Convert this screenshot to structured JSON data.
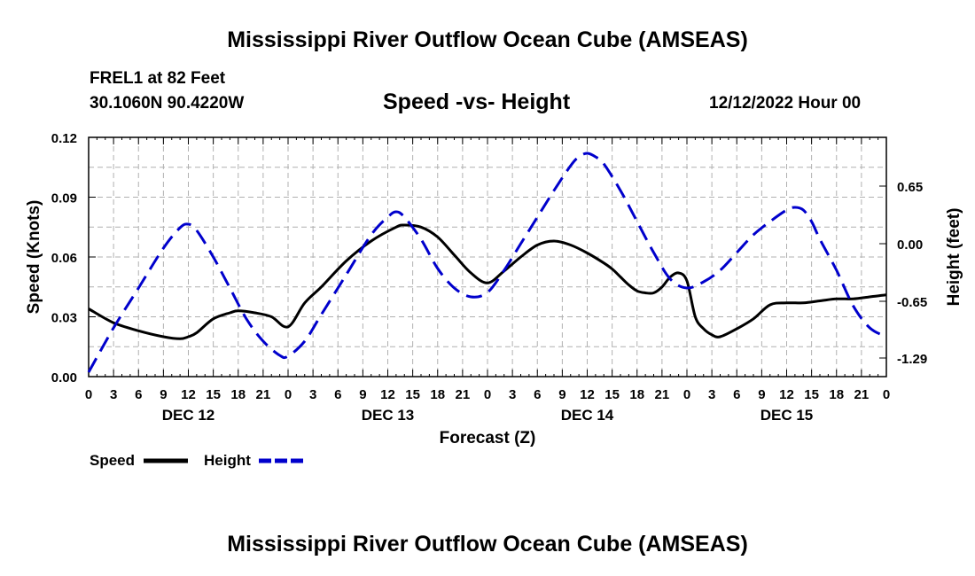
{
  "title": "Mississippi River Outflow Ocean Cube (AMSEAS)",
  "title_repeat": "Mississippi River Outflow Ocean Cube (AMSEAS)",
  "station": {
    "name": "FREL1 at 82 Feet",
    "coords": "30.1060N  90.4220W"
  },
  "plot_title": "Speed -vs- Height",
  "run_date": "12/12/2022 Hour 00",
  "colors": {
    "speed": "#000000",
    "height": "#0000cc",
    "grid": "#b0b0b0"
  },
  "chart_data": {
    "type": "line",
    "xlabel": "Forecast (Z)",
    "ylabel": "Speed (Knots)",
    "y2label": "Height (feet)",
    "x_range_hours": [
      0,
      96
    ],
    "ylim": [
      0,
      0.12
    ],
    "y2lim": [
      -1.5,
      1.2
    ],
    "yticks": [
      "0.00",
      "0.03",
      "0.06",
      "0.09",
      "0.12"
    ],
    "y2ticks": [
      "-1.29",
      "-0.65",
      "0.00",
      "0.65"
    ],
    "y2tick_values": [
      -1.29,
      -0.65,
      0.0,
      0.65
    ],
    "xtick_labels": [
      "0",
      "3",
      "6",
      "9",
      "12",
      "15",
      "18",
      "21",
      "0",
      "3",
      "6",
      "9",
      "12",
      "15",
      "18",
      "21",
      "0",
      "3",
      "6",
      "9",
      "12",
      "15",
      "18",
      "21",
      "0",
      "3",
      "6",
      "9",
      "12",
      "15",
      "18",
      "21",
      "0"
    ],
    "day_labels": [
      {
        "label": "DEC 12",
        "hour": 12
      },
      {
        "label": "DEC 13",
        "hour": 36
      },
      {
        "label": "DEC 14",
        "hour": 60
      },
      {
        "label": "DEC 15",
        "hour": 84
      }
    ],
    "legend": [
      {
        "name": "Speed",
        "style": "solid"
      },
      {
        "name": "Height",
        "style": "dashed"
      }
    ],
    "series": [
      {
        "name": "Speed",
        "axis": "left",
        "style": "solid",
        "x": [
          0,
          3,
          6,
          9,
          11,
          12,
          13,
          15,
          17,
          18,
          20,
          22,
          24,
          26,
          28,
          31,
          34,
          37,
          38,
          40,
          42,
          44,
          46,
          48,
          50,
          52,
          54,
          56,
          58,
          60,
          62,
          63,
          64,
          65,
          66,
          67,
          68,
          69,
          70,
          71,
          72,
          73,
          74,
          75,
          76,
          78,
          80,
          82,
          84,
          86,
          88,
          90,
          92,
          94,
          96
        ],
        "values": [
          0.034,
          0.027,
          0.023,
          0.02,
          0.019,
          0.02,
          0.022,
          0.029,
          0.032,
          0.033,
          0.032,
          0.03,
          0.025,
          0.037,
          0.045,
          0.058,
          0.068,
          0.075,
          0.076,
          0.075,
          0.07,
          0.061,
          0.052,
          0.047,
          0.053,
          0.06,
          0.066,
          0.068,
          0.066,
          0.062,
          0.057,
          0.054,
          0.05,
          0.046,
          0.043,
          0.042,
          0.042,
          0.045,
          0.05,
          0.052,
          0.048,
          0.03,
          0.024,
          0.021,
          0.02,
          0.024,
          0.029,
          0.036,
          0.037,
          0.037,
          0.038,
          0.039,
          0.039,
          0.04,
          0.041
        ]
      },
      {
        "name": "Height",
        "axis": "right",
        "style": "dashed",
        "x": [
          0,
          3,
          6,
          9,
          11,
          12,
          13,
          15,
          17,
          19,
          21,
          23,
          24,
          26,
          28,
          31,
          34,
          36,
          37,
          38,
          40,
          42,
          44,
          46,
          48,
          50,
          52,
          54,
          56,
          58,
          59,
          60,
          61,
          62,
          64,
          66,
          68,
          70,
          72,
          74,
          76,
          78,
          80,
          82,
          84,
          85,
          86,
          87,
          88,
          90,
          92,
          94,
          96
        ],
        "values": [
          -1.45,
          -0.95,
          -0.5,
          -0.05,
          0.18,
          0.22,
          0.15,
          -0.15,
          -0.5,
          -0.85,
          -1.1,
          -1.26,
          -1.27,
          -1.1,
          -0.8,
          -0.35,
          0.1,
          0.3,
          0.36,
          0.3,
          0.05,
          -0.28,
          -0.5,
          -0.6,
          -0.55,
          -0.3,
          0.0,
          0.3,
          0.6,
          0.88,
          0.98,
          1.02,
          0.98,
          0.9,
          0.6,
          0.25,
          -0.1,
          -0.4,
          -0.5,
          -0.43,
          -0.3,
          -0.1,
          0.1,
          0.25,
          0.38,
          0.41,
          0.38,
          0.25,
          0.05,
          -0.3,
          -0.7,
          -0.95,
          -1.05
        ]
      }
    ]
  }
}
